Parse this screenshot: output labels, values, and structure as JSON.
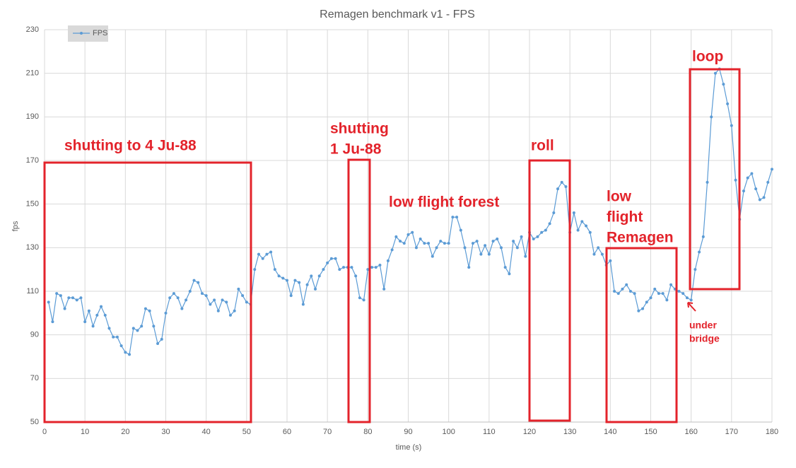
{
  "chart_data": {
    "type": "line",
    "title": "Remagen benchmark v1 - FPS",
    "x_label": "time (s)",
    "y_label": "fps",
    "xlim": [
      0,
      180
    ],
    "ylim": [
      50,
      230
    ],
    "xticks": [
      0,
      10,
      20,
      30,
      40,
      50,
      60,
      70,
      80,
      90,
      100,
      110,
      120,
      130,
      140,
      150,
      160,
      170,
      180
    ],
    "yticks": [
      50,
      70,
      90,
      110,
      130,
      150,
      170,
      190,
      210,
      230
    ],
    "grid": true,
    "legend": "top-left",
    "x": [
      1,
      2,
      3,
      4,
      5,
      6,
      7,
      8,
      9,
      10,
      11,
      12,
      13,
      14,
      15,
      16,
      17,
      18,
      19,
      20,
      21,
      22,
      23,
      24,
      25,
      26,
      27,
      28,
      29,
      30,
      31,
      32,
      33,
      34,
      35,
      36,
      37,
      38,
      39,
      40,
      41,
      42,
      43,
      44,
      45,
      46,
      47,
      48,
      49,
      50,
      51,
      52,
      53,
      54,
      55,
      56,
      57,
      58,
      59,
      60,
      61,
      62,
      63,
      64,
      65,
      66,
      67,
      68,
      69,
      70,
      71,
      72,
      73,
      74,
      75,
      76,
      77,
      78,
      79,
      80,
      81,
      82,
      83,
      84,
      85,
      86,
      87,
      88,
      89,
      90,
      91,
      92,
      93,
      94,
      95,
      96,
      97,
      98,
      99,
      100,
      101,
      102,
      103,
      104,
      105,
      106,
      107,
      108,
      109,
      110,
      111,
      112,
      113,
      114,
      115,
      116,
      117,
      118,
      119,
      120,
      121,
      122,
      123,
      124,
      125,
      126,
      127,
      128,
      129,
      130,
      131,
      132,
      133,
      134,
      135,
      136,
      137,
      138,
      139,
      140,
      141,
      142,
      143,
      144,
      145,
      146,
      147,
      148,
      149,
      150,
      151,
      152,
      153,
      154,
      155,
      156,
      157,
      158,
      159,
      160,
      161,
      162,
      163,
      164,
      165,
      166,
      167,
      168,
      169,
      170,
      171,
      172,
      173,
      174,
      175,
      176,
      177,
      178,
      179,
      180
    ],
    "series": [
      {
        "name": "FPS",
        "color": "#5b9bd5",
        "values": [
          105,
          96,
          109,
          108,
          102,
          107,
          107,
          106,
          107,
          96,
          101,
          94,
          99,
          103,
          99,
          93,
          89,
          89,
          85,
          82,
          81,
          93,
          92,
          94,
          102,
          101,
          94,
          86,
          88,
          100,
          107,
          109,
          107,
          102,
          106,
          110,
          115,
          114,
          109,
          108,
          104,
          106,
          101,
          106,
          105,
          99,
          101,
          111,
          108,
          105,
          104,
          120,
          127,
          125,
          127,
          128,
          120,
          117,
          116,
          115,
          108,
          115,
          114,
          104,
          113,
          117,
          111,
          117,
          120,
          123,
          125,
          125,
          120,
          121,
          121,
          121,
          117,
          107,
          106,
          120,
          121,
          121,
          122,
          111,
          124,
          129,
          135,
          133,
          132,
          136,
          137,
          130,
          134,
          132,
          132,
          126,
          130,
          133,
          132,
          132,
          144,
          144,
          138,
          130,
          121,
          132,
          133,
          127,
          131,
          127,
          133,
          134,
          130,
          121,
          118,
          133,
          130,
          135,
          126,
          137,
          134,
          135,
          137,
          138,
          141,
          146,
          157,
          160,
          158,
          137,
          146,
          138,
          142,
          140,
          137,
          127,
          130,
          127,
          122,
          124,
          110,
          109,
          111,
          113,
          110,
          109,
          101,
          102,
          105,
          107,
          111,
          109,
          109,
          106,
          113,
          111,
          110,
          109,
          107,
          106,
          120,
          128,
          135,
          160,
          190,
          210,
          212,
          205,
          196,
          186,
          161,
          143,
          156,
          162,
          164,
          157,
          152,
          153,
          160,
          166
        ]
      }
    ],
    "annotations": [
      {
        "lines": [
          "shutting to 4 Ju-88"
        ]
      },
      {
        "lines": [
          "shutting",
          "1 Ju-88"
        ]
      },
      {
        "lines": [
          "low flight forest"
        ]
      },
      {
        "lines": [
          "roll"
        ]
      },
      {
        "lines": [
          "low",
          "flight",
          "Remagen"
        ]
      },
      {
        "lines": [
          "loop"
        ]
      },
      {
        "lines": [
          "under",
          "bridge"
        ]
      }
    ]
  }
}
